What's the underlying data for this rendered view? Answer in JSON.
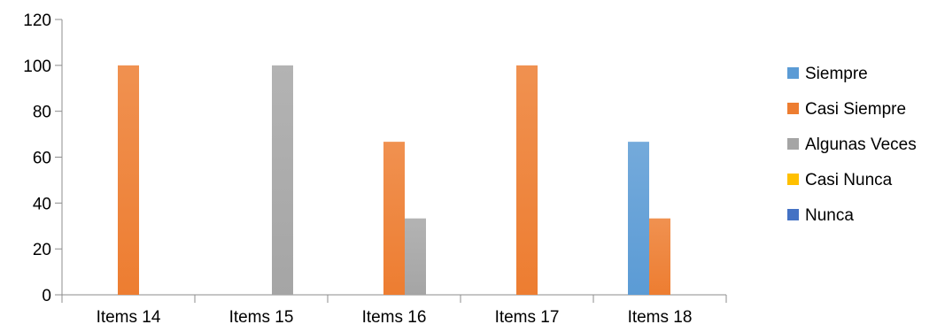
{
  "chart_data": {
    "type": "bar",
    "categories": [
      "Items 14",
      "Items 15",
      "Items 16",
      "Items 17",
      "Items 18"
    ],
    "series": [
      {
        "name": "Siempre",
        "color": "#5b9bd5",
        "values": [
          0,
          0,
          0,
          0,
          66.7
        ]
      },
      {
        "name": "Casi Siempre",
        "color": "#ed7d31",
        "values": [
          100,
          0,
          66.7,
          100,
          33.3
        ]
      },
      {
        "name": "Algunas Veces",
        "color": "#a5a5a5",
        "values": [
          0,
          100,
          33.3,
          0,
          0
        ]
      },
      {
        "name": "Casi Nunca",
        "color": "#ffc000",
        "values": [
          0,
          0,
          0,
          0,
          0
        ]
      },
      {
        "name": "Nunca",
        "color": "#4472c4",
        "values": [
          0,
          0,
          0,
          0,
          0
        ]
      }
    ],
    "title": "",
    "xlabel": "",
    "ylabel": "",
    "ylim": [
      0,
      120
    ],
    "yticks": [
      0,
      20,
      40,
      60,
      80,
      100,
      120
    ],
    "grid": false,
    "legend_position": "right"
  }
}
